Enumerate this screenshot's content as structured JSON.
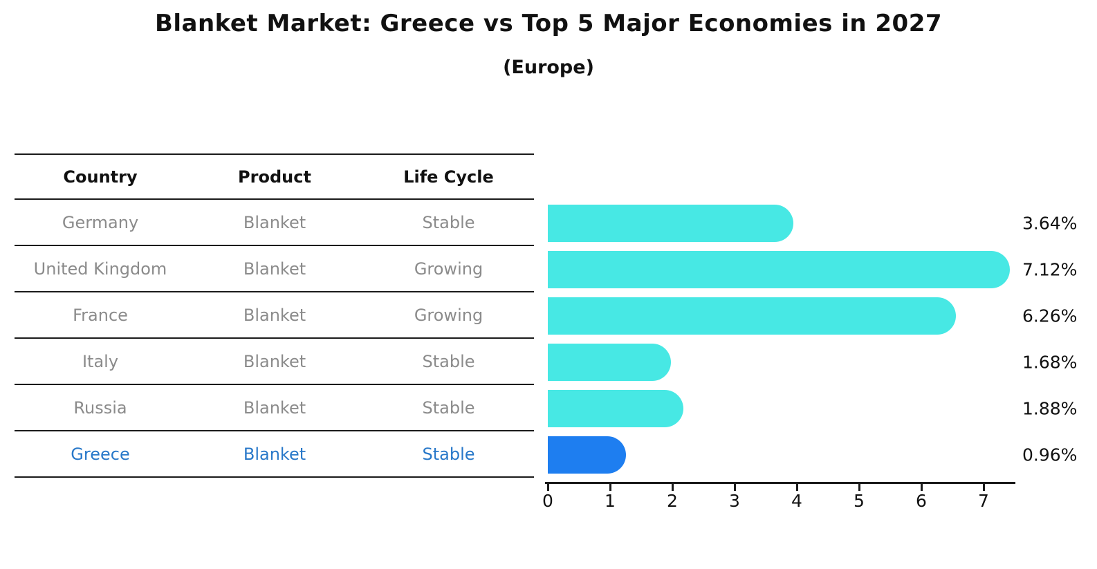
{
  "title": "Blanket Market: Greece vs Top 5 Major Economies in 2027",
  "subtitle": "(Europe)",
  "table": {
    "headers": [
      "Country",
      "Product",
      "Life Cycle"
    ],
    "rows": [
      {
        "country": "Germany",
        "product": "Blanket",
        "life_cycle": "Stable",
        "highlight": false
      },
      {
        "country": "United Kingdom",
        "product": "Blanket",
        "life_cycle": "Growing",
        "highlight": false
      },
      {
        "country": "France",
        "product": "Blanket",
        "life_cycle": "Growing",
        "highlight": false
      },
      {
        "country": "Italy",
        "product": "Blanket",
        "life_cycle": "Stable",
        "highlight": false
      },
      {
        "country": "Russia",
        "product": "Blanket",
        "life_cycle": "Stable",
        "highlight": true
      }
    ]
  },
  "chart_data": {
    "type": "bar",
    "orientation": "horizontal",
    "title": "Blanket Market: Greece vs Top 5 Major Economies in 2027",
    "subtitle": "(Europe)",
    "categories": [
      "Germany",
      "United Kingdom",
      "France",
      "Italy",
      "Russia",
      "Greece"
    ],
    "values": [
      3.64,
      7.12,
      6.26,
      1.68,
      1.88,
      0.96
    ],
    "value_labels": [
      "3.64%",
      "7.12%",
      "6.26%",
      "1.68%",
      "1.88%",
      "0.96%"
    ],
    "x_ticks": [
      "0",
      "1",
      "2",
      "3",
      "4",
      "5",
      "6",
      "7"
    ],
    "xlim": [
      0,
      7.5
    ],
    "xlabel": "",
    "ylabel": "",
    "grid": false,
    "legend": false,
    "highlight_index": 5,
    "bar_color": "#47E8E4",
    "highlight_bar_color": "#1E7EF0",
    "highlight_text_color": "#2878C9",
    "table_text_color": "#8B8B8B",
    "axis_color": "#1A1A1A"
  }
}
